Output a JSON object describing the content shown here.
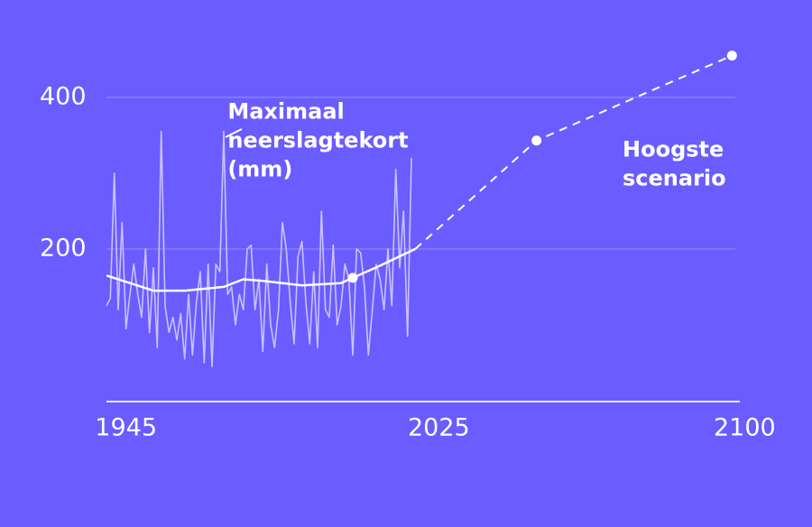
{
  "chart_data": {
    "type": "line",
    "annotations": [
      {
        "lines": [
          "Maximaal",
          "neerslagtekort",
          "(mm)"
        ],
        "x": 1971,
        "y": 380
      },
      {
        "lines": [
          "Hoogste",
          "scenario"
        ],
        "x": 2072,
        "y": 330
      }
    ],
    "xlim": [
      1940,
      2102
    ],
    "xticks": [
      1945,
      2025,
      2100
    ],
    "ylim": [
      0,
      520
    ],
    "yticks": [
      200,
      400
    ],
    "grid": true,
    "series": [
      {
        "style": "raw",
        "color": "#c9c1ff",
        "x": [
          1940,
          1941,
          1942,
          1943,
          1944,
          1945,
          1946,
          1947,
          1948,
          1949,
          1950,
          1951,
          1952,
          1953,
          1954,
          1955,
          1956,
          1957,
          1958,
          1959,
          1960,
          1961,
          1962,
          1963,
          1964,
          1965,
          1966,
          1967,
          1968,
          1969,
          1970,
          1971,
          1972,
          1973,
          1974,
          1975,
          1976,
          1977,
          1978,
          1979,
          1980,
          1981,
          1982,
          1983,
          1984,
          1985,
          1986,
          1987,
          1988,
          1989,
          1990,
          1991,
          1992,
          1993,
          1994,
          1995,
          1996,
          1997,
          1998,
          1999,
          2000,
          2001,
          2002,
          2003,
          2004,
          2005,
          2006,
          2007,
          2008,
          2009,
          2010,
          2011,
          2012,
          2013,
          2014,
          2015,
          2016,
          2017,
          2018
        ],
        "values": [
          125,
          135,
          300,
          120,
          235,
          95,
          140,
          180,
          140,
          110,
          200,
          90,
          175,
          70,
          355,
          125,
          90,
          110,
          80,
          115,
          55,
          140,
          60,
          130,
          170,
          50,
          180,
          45,
          180,
          170,
          355,
          140,
          150,
          100,
          140,
          120,
          200,
          205,
          120,
          160,
          65,
          180,
          100,
          70,
          120,
          235,
          200,
          130,
          75,
          190,
          210,
          130,
          75,
          170,
          70,
          250,
          120,
          110,
          205,
          100,
          125,
          180,
          160,
          60,
          200,
          195,
          150,
          60,
          120,
          180,
          160,
          120,
          200,
          125,
          305,
          175,
          250,
          85,
          320
        ]
      },
      {
        "style": "smooth",
        "color": "#ffffff",
        "x": [
          1940,
          1946,
          1952,
          1960,
          1970,
          1975,
          1980,
          1990,
          2000,
          2003,
          2010,
          2019
        ],
        "values": [
          165,
          155,
          145,
          145,
          150,
          160,
          158,
          152,
          155,
          162,
          178,
          200
        ]
      },
      {
        "style": "dashed",
        "color": "#ffffff",
        "x": [
          2019,
          2050,
          2100
        ],
        "values": [
          200,
          343,
          455
        ]
      },
      {
        "style": "points",
        "color": "#ffffff",
        "x": [
          2003,
          2050,
          2100
        ],
        "values": [
          162,
          343,
          455
        ]
      }
    ]
  }
}
